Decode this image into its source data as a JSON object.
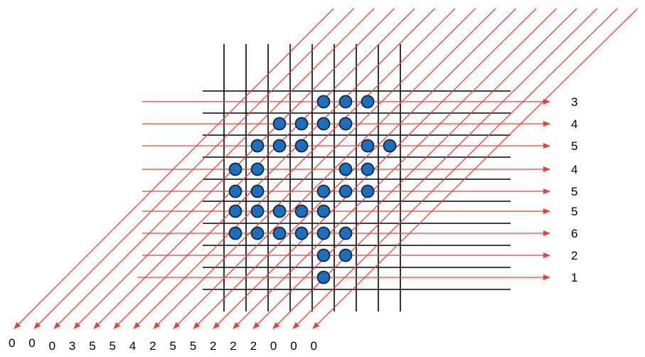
{
  "row_sums": [
    "3",
    "4",
    "5",
    "4",
    "5",
    "5",
    "6",
    "2",
    "1"
  ],
  "diagonal_sums": [
    "0",
    "0",
    "0",
    "3",
    "5",
    "5",
    "4",
    "2",
    "5",
    "5",
    "2",
    "2",
    "2",
    "0",
    "0",
    "0"
  ],
  "dots": [
    [
      4,
      0
    ],
    [
      5,
      0
    ],
    [
      6,
      0
    ],
    [
      2,
      1
    ],
    [
      3,
      1
    ],
    [
      4,
      1
    ],
    [
      5,
      1
    ],
    [
      1,
      2
    ],
    [
      2,
      2
    ],
    [
      3,
      2
    ],
    [
      6,
      2
    ],
    [
      7,
      2
    ],
    [
      0,
      3
    ],
    [
      1,
      3
    ],
    [
      5,
      3
    ],
    [
      6,
      3
    ],
    [
      0,
      4
    ],
    [
      1,
      4
    ],
    [
      4,
      4
    ],
    [
      5,
      4
    ],
    [
      6,
      4
    ],
    [
      0,
      5
    ],
    [
      1,
      5
    ],
    [
      2,
      5
    ],
    [
      3,
      5
    ],
    [
      4,
      5
    ],
    [
      0,
      6
    ],
    [
      1,
      6
    ],
    [
      2,
      6
    ],
    [
      3,
      6
    ],
    [
      4,
      6
    ],
    [
      5,
      6
    ],
    [
      4,
      7
    ],
    [
      5,
      7
    ],
    [
      4,
      8
    ]
  ],
  "colors": {
    "grid": "#000000",
    "ray": "#e8403a",
    "dot_fill": "#1a6fc0",
    "dot_stroke": "#10243a",
    "label": "#000000"
  }
}
